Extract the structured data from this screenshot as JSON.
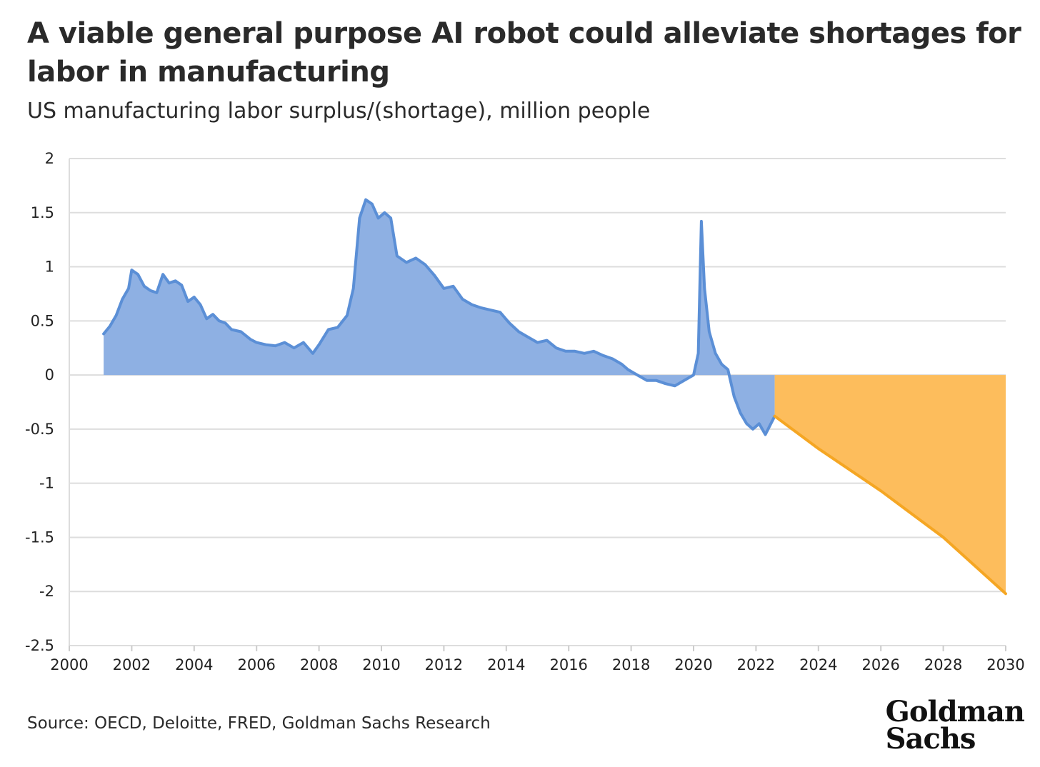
{
  "title": "A viable general purpose AI robot could alleviate shortages for labor in manufacturing",
  "subtitle": "US manufacturing labor surplus/(shortage), million people",
  "source": "Source: OECD, Deloitte, FRED, Goldman Sachs Research",
  "logo": {
    "line1": "Goldman",
    "line2": "Sachs"
  },
  "colors": {
    "historical_line": "#5b8fd6",
    "historical_fill": "#8eb0e3",
    "forecast_line": "#f5a623",
    "forecast_fill": "#fdbd5c",
    "grid": "#dddddd"
  },
  "chart_data": {
    "type": "area",
    "xlim": [
      2000,
      2030
    ],
    "ylim": [
      -2.5,
      2
    ],
    "x_ticks": [
      2000,
      2002,
      2004,
      2006,
      2008,
      2010,
      2012,
      2014,
      2016,
      2018,
      2020,
      2022,
      2024,
      2026,
      2028,
      2030
    ],
    "y_ticks": [
      2,
      1.5,
      1,
      0.5,
      0,
      -0.5,
      -1,
      -1.5,
      -2,
      -2.5
    ],
    "y_tick_labels": [
      "2",
      "1.5",
      "1",
      "0.5",
      "0",
      "-0.5",
      "-1",
      "-1.5",
      "-2",
      "-2.5"
    ],
    "grid": true,
    "series": [
      {
        "x": [
          2001.1,
          2001.3,
          2001.5,
          2001.7,
          2001.9,
          2002.0,
          2002.2,
          2002.4,
          2002.6,
          2002.8,
          2003.0,
          2003.2,
          2003.4,
          2003.6,
          2003.8,
          2004.0,
          2004.2,
          2004.4,
          2004.6,
          2004.8,
          2005.0,
          2005.2,
          2005.5,
          2005.8,
          2006.0,
          2006.3,
          2006.6,
          2006.9,
          2007.2,
          2007.5,
          2007.8,
          2008.0,
          2008.3,
          2008.6,
          2008.9,
          2009.1,
          2009.3,
          2009.5,
          2009.7,
          2009.9,
          2010.1,
          2010.3,
          2010.5,
          2010.8,
          2011.1,
          2011.4,
          2011.7,
          2012.0,
          2012.3,
          2012.6,
          2012.9,
          2013.2,
          2013.5,
          2013.8,
          2014.1,
          2014.4,
          2014.7,
          2015.0,
          2015.3,
          2015.6,
          2015.9,
          2016.2,
          2016.5,
          2016.8,
          2017.1,
          2017.4,
          2017.7,
          2017.9,
          2018.2,
          2018.5,
          2018.8,
          2019.1,
          2019.4,
          2019.7,
          2020.0,
          2020.15,
          2020.25,
          2020.35,
          2020.5,
          2020.7,
          2020.9,
          2021.1,
          2021.3,
          2021.5,
          2021.7,
          2021.9,
          2022.1,
          2022.3,
          2022.6
        ],
        "y": [
          0.38,
          0.45,
          0.55,
          0.7,
          0.8,
          0.97,
          0.93,
          0.82,
          0.78,
          0.76,
          0.93,
          0.85,
          0.87,
          0.83,
          0.68,
          0.72,
          0.65,
          0.52,
          0.56,
          0.5,
          0.48,
          0.42,
          0.4,
          0.33,
          0.3,
          0.28,
          0.27,
          0.3,
          0.25,
          0.3,
          0.2,
          0.28,
          0.42,
          0.44,
          0.55,
          0.8,
          1.45,
          1.62,
          1.58,
          1.45,
          1.5,
          1.45,
          1.1,
          1.04,
          1.08,
          1.02,
          0.92,
          0.8,
          0.82,
          0.7,
          0.65,
          0.62,
          0.6,
          0.58,
          0.48,
          0.4,
          0.35,
          0.3,
          0.32,
          0.25,
          0.22,
          0.22,
          0.2,
          0.22,
          0.18,
          0.15,
          0.1,
          0.05,
          0.0,
          -0.05,
          -0.05,
          -0.08,
          -0.1,
          -0.05,
          0.0,
          0.2,
          1.42,
          0.8,
          0.4,
          0.2,
          0.1,
          0.05,
          -0.2,
          -0.35,
          -0.45,
          -0.5,
          -0.45,
          -0.55,
          -0.38
        ]
      },
      {
        "x": [
          2022.6,
          2024,
          2026,
          2028,
          2030
        ],
        "y": [
          -0.38,
          -0.68,
          -1.07,
          -1.5,
          -2.02
        ]
      }
    ]
  }
}
